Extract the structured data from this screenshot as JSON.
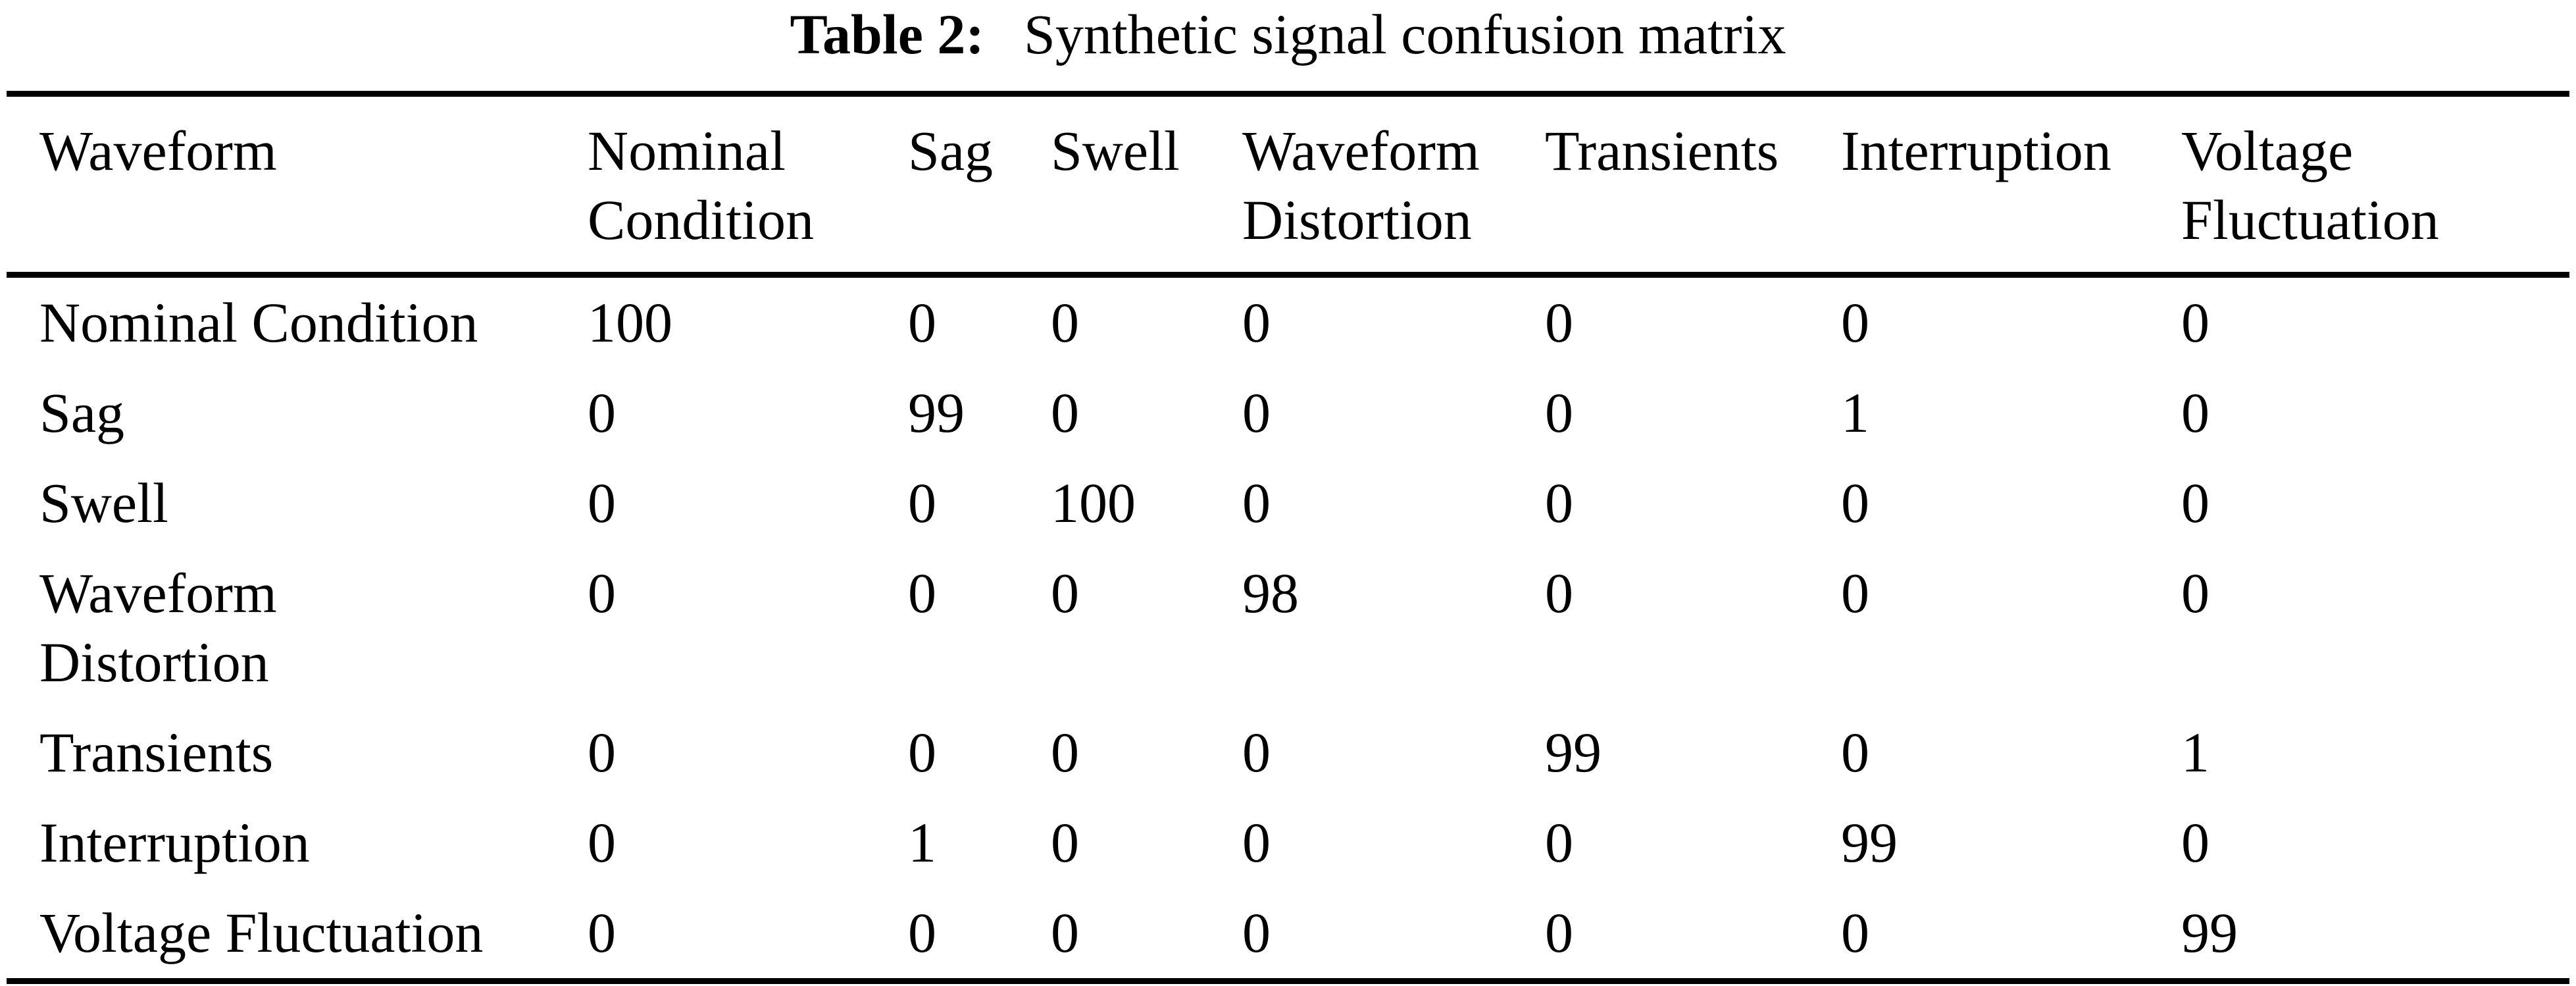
{
  "caption": {
    "label": "Table 2:",
    "text": "Synthetic signal confusion matrix"
  },
  "table": {
    "columns": [
      "Waveform",
      "Nominal Condition",
      "Sag",
      "Swell",
      "Waveform Distortion",
      "Transients",
      "Interruption",
      "Voltage Fluctuation"
    ],
    "rows": [
      {
        "label": "Nominal Condition",
        "values": [
          "100",
          "0",
          "0",
          "0",
          "0",
          "0",
          "0"
        ]
      },
      {
        "label": "Sag",
        "values": [
          "0",
          "99",
          "0",
          "0",
          "0",
          "1",
          "0"
        ]
      },
      {
        "label": "Swell",
        "values": [
          "0",
          "0",
          "100",
          "0",
          "0",
          "0",
          "0"
        ]
      },
      {
        "label": "Waveform Distortion",
        "values": [
          "0",
          "0",
          "0",
          "98",
          "0",
          "0",
          "0"
        ]
      },
      {
        "label": "Transients",
        "values": [
          "0",
          "0",
          "0",
          "0",
          "99",
          "0",
          "1"
        ]
      },
      {
        "label": "Interruption",
        "values": [
          "0",
          "1",
          "0",
          "0",
          "0",
          "99",
          "0"
        ]
      },
      {
        "label": "Voltage Fluctuation",
        "values": [
          "0",
          "0",
          "0",
          "0",
          "0",
          "0",
          "99"
        ]
      }
    ]
  },
  "colors": {
    "text": "#000000",
    "background": "#ffffff",
    "rule": "#000000"
  }
}
